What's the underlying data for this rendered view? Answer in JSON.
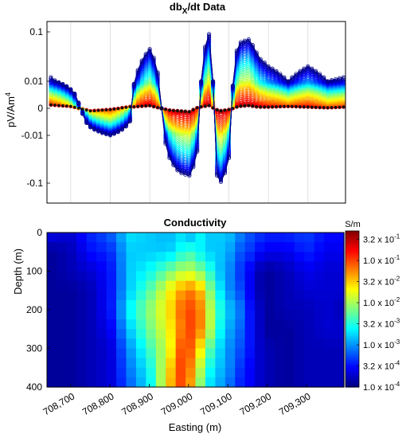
{
  "chart_data": [
    {
      "type": "line",
      "title": "db",
      "title_sub": "X",
      "title_suffix": "/dt Data",
      "ylabel": "pV/Am",
      "ylabel_sup": "4",
      "yscale": "symlog",
      "ytick_labels": [
        "0.1",
        "0.01",
        "0",
        "-0.01",
        "-0.1"
      ],
      "ytick_values": [
        0.1,
        0.01,
        0,
        -0.01,
        -0.1
      ],
      "xlim": [
        708640,
        709395
      ],
      "grid": "vertical",
      "colormap": "jet",
      "channel_profile": {
        "x": [
          708650,
          708700,
          708750,
          708800,
          708850,
          708900,
          708950,
          708975,
          709000,
          709025,
          709050,
          709075,
          709100,
          709125,
          709150,
          709175,
          709200,
          709250,
          709300,
          709350,
          709390
        ],
        "early_gate_y": [
          0.012,
          0.004,
          -0.004,
          -0.01,
          -0.002,
          0.045,
          -0.03,
          -0.06,
          -0.07,
          -0.01,
          0.09,
          -0.11,
          -0.03,
          0.06,
          0.07,
          0.03,
          0.02,
          0.01,
          0.02,
          0.01,
          0.012
        ],
        "late_gate_y": [
          0.0005,
          0.0003,
          -0.0004,
          -0.0002,
          0.0002,
          0.0004,
          -0.0003,
          -0.0004,
          -0.0005,
          0.0002,
          0.0004,
          -0.0004,
          -0.0002,
          0.0003,
          0.0004,
          0.0002,
          0.0002,
          0.0003,
          0.0002,
          0.0001,
          0.0002
        ]
      }
    },
    {
      "type": "heatmap",
      "title": "Conductivity",
      "xlabel": "Easting (m)",
      "ylabel": "Depth (m)",
      "xlim": [
        708640,
        709395
      ],
      "ylim": [
        0,
        400
      ],
      "xtick_labels": [
        "708,700",
        "708,800",
        "708,900",
        "709,000",
        "709,100",
        "709,200",
        "709,300"
      ],
      "xtick_values": [
        708700,
        708800,
        708900,
        709000,
        709100,
        709200,
        709300
      ],
      "ytick_labels": [
        "0",
        "100",
        "200",
        "300",
        "400"
      ],
      "ytick_values": [
        0,
        100,
        200,
        300,
        400
      ],
      "colorbar": {
        "unit": "S/m",
        "log10_range": [
          -4,
          -0.3
        ],
        "labels": [
          {
            "mantissa": "3.2",
            "exp": "-1"
          },
          {
            "mantissa": "1.0",
            "exp": "-1"
          },
          {
            "mantissa": "3.2",
            "exp": "-2"
          },
          {
            "mantissa": "1.0",
            "exp": "-2"
          },
          {
            "mantissa": "3.2",
            "exp": "-3"
          },
          {
            "mantissa": "1.0",
            "exp": "-3"
          },
          {
            "mantissa": "3.2",
            "exp": "-4"
          },
          {
            "mantissa": "1.0",
            "exp": "-4"
          }
        ],
        "label_log10": [
          -0.5,
          -1,
          -1.5,
          -2,
          -2.5,
          -3,
          -3.5,
          -4
        ]
      },
      "conductivity_log10_by_depth_and_easting": {
        "easting": [
          708650,
          708700,
          708750,
          708800,
          708850,
          708900,
          708950,
          708975,
          709000,
          709025,
          709050,
          709075,
          709100,
          709125,
          709150,
          709175,
          709200,
          709250,
          709300,
          709350,
          709390
        ],
        "depth": [
          0,
          50,
          100,
          150,
          200,
          250,
          300,
          350,
          400
        ],
        "log10_sigma": [
          [
            -3.6,
            -3.7,
            -3.4,
            -3.2,
            -2.7,
            -2.8,
            -2.9,
            -2.7,
            -3.0,
            -2.6,
            -2.8,
            -2.8,
            -2.8,
            -3.0,
            -3.2,
            -3.3,
            -3.4,
            -3.4,
            -3.3,
            -3.5,
            -3.5
          ],
          [
            -3.9,
            -3.8,
            -3.5,
            -3.4,
            -2.8,
            -2.8,
            -2.8,
            -2.6,
            -2.4,
            -2.6,
            -2.8,
            -2.8,
            -2.9,
            -3.2,
            -3.3,
            -3.5,
            -3.6,
            -3.6,
            -3.4,
            -3.6,
            -3.6
          ],
          [
            -3.9,
            -3.8,
            -3.7,
            -3.5,
            -2.8,
            -2.6,
            -2.2,
            -2.0,
            -1.9,
            -2.1,
            -2.4,
            -2.8,
            -3.0,
            -3.3,
            -3.5,
            -3.8,
            -3.9,
            -3.8,
            -3.6,
            -3.7,
            -3.7
          ],
          [
            -3.9,
            -3.9,
            -3.8,
            -3.5,
            -2.8,
            -2.3,
            -1.7,
            -1.4,
            -1.2,
            -1.3,
            -2.0,
            -2.6,
            -3.0,
            -3.2,
            -3.5,
            -3.8,
            -3.9,
            -3.8,
            -3.7,
            -3.7,
            -3.7
          ],
          [
            -3.9,
            -3.9,
            -3.8,
            -3.5,
            -2.6,
            -2.1,
            -1.6,
            -1.2,
            -1.0,
            -1.1,
            -1.8,
            -2.4,
            -2.8,
            -3.0,
            -3.4,
            -3.7,
            -3.9,
            -3.8,
            -3.8,
            -3.7,
            -3.8
          ],
          [
            -3.9,
            -3.9,
            -3.8,
            -3.6,
            -2.8,
            -2.2,
            -1.7,
            -1.3,
            -1.0,
            -1.1,
            -1.8,
            -2.5,
            -2.9,
            -3.1,
            -3.4,
            -3.7,
            -3.9,
            -3.9,
            -3.8,
            -3.7,
            -3.7
          ],
          [
            -3.9,
            -3.9,
            -3.8,
            -3.7,
            -3.0,
            -2.4,
            -1.8,
            -1.1,
            -1.0,
            -1.5,
            -2.2,
            -2.7,
            -3.0,
            -3.2,
            -3.4,
            -3.7,
            -3.8,
            -3.9,
            -3.8,
            -3.8,
            -3.8
          ],
          [
            -3.9,
            -3.9,
            -3.8,
            -3.7,
            -3.1,
            -2.6,
            -1.6,
            -1.0,
            -1.1,
            -1.8,
            -2.5,
            -2.8,
            -3.0,
            -3.3,
            -3.5,
            -3.7,
            -3.8,
            -3.9,
            -3.8,
            -3.8,
            -3.8
          ],
          [
            -3.9,
            -3.9,
            -3.8,
            -3.7,
            -3.2,
            -2.7,
            -1.5,
            -1.0,
            -1.2,
            -2.0,
            -2.7,
            -2.9,
            -3.1,
            -3.4,
            -3.5,
            -3.7,
            -3.8,
            -3.9,
            -3.8,
            -3.8,
            -3.8
          ]
        ]
      }
    }
  ]
}
